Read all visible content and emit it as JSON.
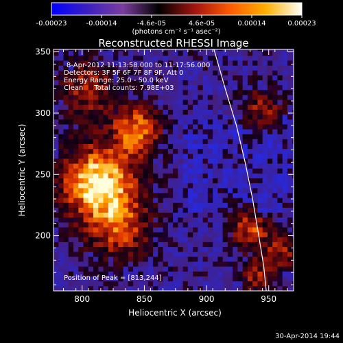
{
  "chart_data": {
    "type": "heatmap",
    "title": "Reconstructed RHESSI Image",
    "xlabel": "Heliocentric X (arcsec)",
    "ylabel": "Heliocentric Y (arcsec)",
    "xlim": [
      777,
      970
    ],
    "ylim": [
      155,
      352
    ],
    "x_ticks": [
      800,
      850,
      900,
      950
    ],
    "y_ticks": [
      200,
      250,
      300,
      350
    ],
    "colorbar": {
      "ticks": [
        "-0.00023",
        "-0.00014",
        "-4.6e-05",
        "4.6e-05",
        "0.00014",
        "0.00023"
      ],
      "units_line": "(photons cm⁻² s⁻¹ asec⁻²)",
      "colors": [
        "#0000ff",
        "#3b1fc0",
        "#7a3e9e",
        "#000000",
        "#a01410",
        "#ff5a00",
        "#ffb000",
        "#ffffff"
      ]
    },
    "annotations": {
      "time_range": "8-Apr-2012 11:13:58.000 to 11:17:56.000",
      "detectors": "Detectors: 3F 5F 6F 7F 8F 9F, Att 0",
      "energy": "Energy Range: 25.0 - 50.0 keV",
      "clean": "Clean     Total counts: 7.98E+03",
      "peak": "Position of Peak = [813,244]"
    },
    "limb_points": [
      [
        906,
        352
      ],
      [
        915,
        320
      ],
      [
        924,
        290
      ],
      [
        931,
        260
      ],
      [
        937,
        230
      ],
      [
        942,
        200
      ],
      [
        946,
        175
      ],
      [
        948,
        155
      ]
    ],
    "bright_regions": [
      {
        "x": 813,
        "y": 244,
        "sigma": 22,
        "weight": 1.0
      },
      {
        "x": 845,
        "y": 287,
        "sigma": 14,
        "weight": 0.75
      },
      {
        "x": 830,
        "y": 205,
        "sigma": 20,
        "weight": 0.55
      },
      {
        "x": 805,
        "y": 320,
        "sigma": 18,
        "weight": 0.5
      },
      {
        "x": 935,
        "y": 205,
        "sigma": 12,
        "weight": 0.6
      },
      {
        "x": 960,
        "y": 185,
        "sigma": 12,
        "weight": 0.45
      },
      {
        "x": 945,
        "y": 305,
        "sigma": 14,
        "weight": 0.45
      },
      {
        "x": 940,
        "y": 165,
        "sigma": 10,
        "weight": 0.45
      }
    ]
  },
  "footer": {
    "timestamp": "30-Apr-2014 19:44"
  }
}
